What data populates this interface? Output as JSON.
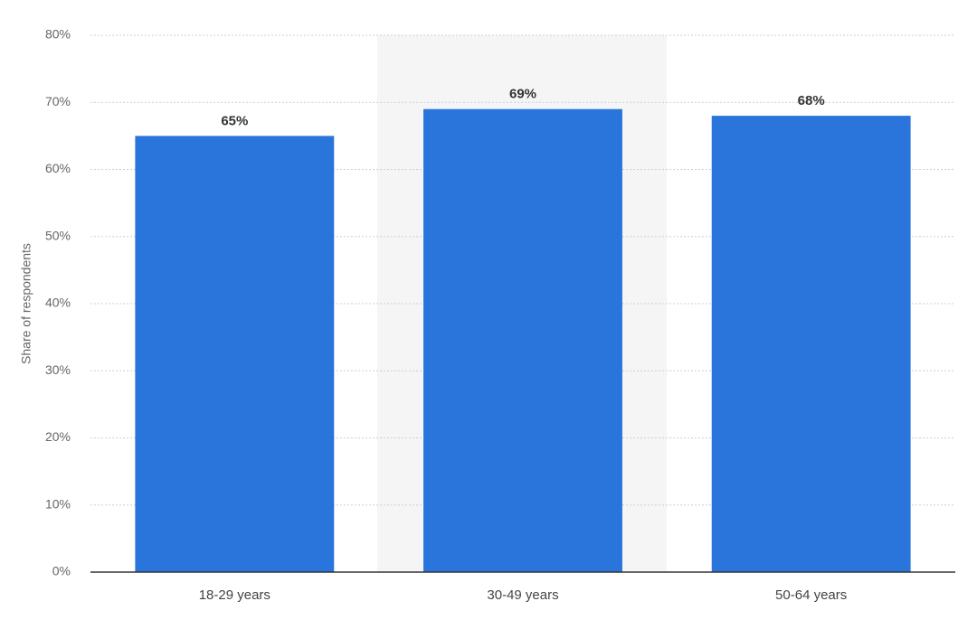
{
  "chart_data": {
    "type": "bar",
    "y_axis_label": "Share of respondents",
    "categories": [
      "18-29 years",
      "30-49 years",
      "50-64 years"
    ],
    "values": [
      65,
      69,
      68
    ],
    "value_labels": [
      "65%",
      "69%",
      "68%"
    ],
    "color": "#2a75dc",
    "ylim": [
      0,
      80
    ],
    "yticks": [
      {
        "value": 0,
        "label": "0%"
      },
      {
        "value": 10,
        "label": "10%"
      },
      {
        "value": 20,
        "label": "20%"
      },
      {
        "value": 30,
        "label": "30%"
      },
      {
        "value": 40,
        "label": "40%"
      },
      {
        "value": 50,
        "label": "50%"
      },
      {
        "value": 60,
        "label": "60%"
      },
      {
        "value": 70,
        "label": "70%"
      },
      {
        "value": 80,
        "label": "80%"
      }
    ],
    "grid": true
  }
}
